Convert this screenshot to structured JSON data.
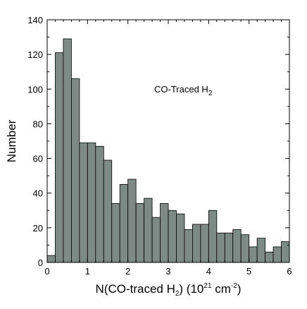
{
  "chart_data": {
    "type": "bar",
    "histogram": true,
    "bin_width": 0.2,
    "x_start": 0,
    "values": [
      4,
      121,
      129,
      106,
      69,
      69,
      67,
      59,
      34,
      45,
      48,
      34,
      37,
      26,
      34,
      30,
      28,
      19,
      22,
      22,
      30,
      17,
      17,
      19,
      16,
      9,
      14,
      6,
      9,
      12
    ],
    "xlim": [
      0,
      6
    ],
    "ylim": [
      0,
      140
    ],
    "xticks": [
      0,
      1,
      2,
      3,
      4,
      5,
      6
    ],
    "yticks": [
      0,
      20,
      40,
      60,
      80,
      100,
      120,
      140
    ],
    "ylabel": "Number",
    "xlabel": {
      "prefix": "N(CO-traced H",
      "sub": "2",
      "middle": ") (10",
      "sup1": "21",
      "unit": " cm",
      "sup2": "-2",
      "suffix": ")"
    },
    "annotation": {
      "text": "CO-Traced H",
      "sub": "2"
    },
    "bar_color": "#7d8a86",
    "grid": false
  }
}
